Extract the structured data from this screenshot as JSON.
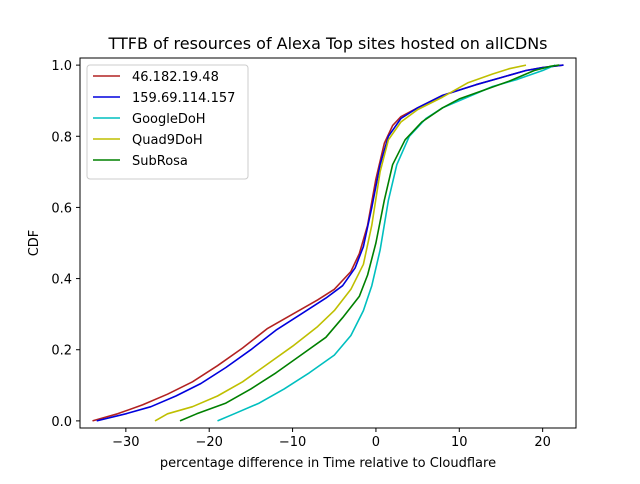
{
  "chart_data": {
    "type": "line",
    "title": "TTFB of resources of Alexa Top sites hosted on allCDNs",
    "xlabel": "percentage difference in Time relative to Cloudflare",
    "ylabel": "CDF",
    "xlim": [
      -35.5,
      24
    ],
    "ylim": [
      -0.02,
      1.02
    ],
    "xticks": [
      -30,
      -20,
      -10,
      0,
      10,
      20
    ],
    "yticks": [
      0.0,
      0.2,
      0.4,
      0.6,
      0.8,
      1.0
    ],
    "xtick_labels": [
      "−30",
      "−20",
      "−10",
      "0",
      "10",
      "20"
    ],
    "ytick_labels": [
      "0.0",
      "0.2",
      "0.4",
      "0.6",
      "0.8",
      "1.0"
    ],
    "legend_position": "top-left",
    "series": [
      {
        "name": "46.182.19.48",
        "color": "#b22222",
        "points": [
          [
            -34,
            0
          ],
          [
            -31,
            0.02
          ],
          [
            -28,
            0.045
          ],
          [
            -25,
            0.075
          ],
          [
            -22,
            0.11
          ],
          [
            -19,
            0.155
          ],
          [
            -16,
            0.205
          ],
          [
            -13,
            0.26
          ],
          [
            -10,
            0.3
          ],
          [
            -7,
            0.34
          ],
          [
            -5,
            0.37
          ],
          [
            -3,
            0.42
          ],
          [
            -2,
            0.47
          ],
          [
            -1,
            0.55
          ],
          [
            0,
            0.68
          ],
          [
            1,
            0.78
          ],
          [
            2,
            0.83
          ],
          [
            3,
            0.855
          ],
          [
            5,
            0.88
          ],
          [
            8,
            0.915
          ],
          [
            12,
            0.945
          ],
          [
            15,
            0.965
          ],
          [
            18,
            0.985
          ],
          [
            20,
            0.993
          ],
          [
            22.5,
            1.0
          ]
        ]
      },
      {
        "name": "159.69.114.157",
        "color": "#0000dd",
        "points": [
          [
            -33.5,
            0
          ],
          [
            -30,
            0.02
          ],
          [
            -27,
            0.04
          ],
          [
            -24,
            0.07
          ],
          [
            -21,
            0.105
          ],
          [
            -18,
            0.15
          ],
          [
            -15,
            0.2
          ],
          [
            -12,
            0.255
          ],
          [
            -9,
            0.3
          ],
          [
            -6,
            0.345
          ],
          [
            -4,
            0.38
          ],
          [
            -2.5,
            0.43
          ],
          [
            -1.5,
            0.49
          ],
          [
            -0.5,
            0.6
          ],
          [
            0.5,
            0.72
          ],
          [
            1.5,
            0.8
          ],
          [
            3,
            0.85
          ],
          [
            5,
            0.88
          ],
          [
            8,
            0.915
          ],
          [
            12,
            0.945
          ],
          [
            15,
            0.965
          ],
          [
            18,
            0.985
          ],
          [
            20,
            0.993
          ],
          [
            22.5,
            1.0
          ]
        ]
      },
      {
        "name": "GoogleDoH",
        "color": "#00bfbf",
        "points": [
          [
            -19,
            0
          ],
          [
            -17,
            0.02
          ],
          [
            -14,
            0.05
          ],
          [
            -11,
            0.09
          ],
          [
            -8,
            0.135
          ],
          [
            -5,
            0.185
          ],
          [
            -3,
            0.24
          ],
          [
            -1.5,
            0.31
          ],
          [
            -0.5,
            0.38
          ],
          [
            0.5,
            0.48
          ],
          [
            1.5,
            0.62
          ],
          [
            2.5,
            0.72
          ],
          [
            4,
            0.8
          ],
          [
            6,
            0.85
          ],
          [
            8,
            0.88
          ],
          [
            11,
            0.91
          ],
          [
            14,
            0.94
          ],
          [
            17,
            0.96
          ],
          [
            20,
            0.985
          ],
          [
            21.5,
            1.0
          ]
        ]
      },
      {
        "name": "Quad9DoH",
        "color": "#bfbf00",
        "points": [
          [
            -26.5,
            0
          ],
          [
            -25,
            0.02
          ],
          [
            -22,
            0.04
          ],
          [
            -19,
            0.07
          ],
          [
            -16,
            0.11
          ],
          [
            -13,
            0.16
          ],
          [
            -10,
            0.21
          ],
          [
            -7,
            0.265
          ],
          [
            -5,
            0.31
          ],
          [
            -3,
            0.37
          ],
          [
            -1.5,
            0.44
          ],
          [
            -0.5,
            0.55
          ],
          [
            0.5,
            0.7
          ],
          [
            1.5,
            0.79
          ],
          [
            3,
            0.84
          ],
          [
            5,
            0.875
          ],
          [
            8,
            0.91
          ],
          [
            11,
            0.95
          ],
          [
            14,
            0.975
          ],
          [
            16,
            0.99
          ],
          [
            18,
            1.0
          ]
        ]
      },
      {
        "name": "SubRosa",
        "color": "#008000",
        "points": [
          [
            -23.5,
            0
          ],
          [
            -21.5,
            0.02
          ],
          [
            -18,
            0.05
          ],
          [
            -15,
            0.09
          ],
          [
            -12,
            0.135
          ],
          [
            -9,
            0.185
          ],
          [
            -6,
            0.235
          ],
          [
            -4,
            0.29
          ],
          [
            -2,
            0.35
          ],
          [
            -1,
            0.41
          ],
          [
            0,
            0.5
          ],
          [
            1,
            0.62
          ],
          [
            2,
            0.72
          ],
          [
            3.5,
            0.79
          ],
          [
            5.5,
            0.84
          ],
          [
            8,
            0.88
          ],
          [
            10,
            0.905
          ],
          [
            13,
            0.93
          ],
          [
            16,
            0.955
          ],
          [
            19,
            0.985
          ],
          [
            21,
            0.997
          ],
          [
            22,
            1.0
          ]
        ]
      }
    ]
  }
}
